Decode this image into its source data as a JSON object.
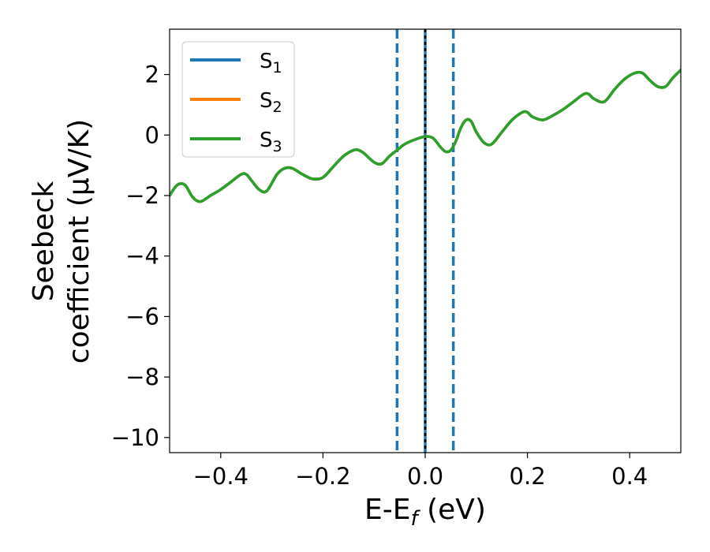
{
  "chart_data": {
    "type": "line",
    "xlabel": "E-E",
    "xlabel_sub": "f",
    "xlabel_unit": " (eV)",
    "ylabel_line1": "Seebeck",
    "ylabel_line2": "coefficient  (μV/K)",
    "xlim": [
      -0.5,
      0.5
    ],
    "ylim": [
      -10.5,
      3.5
    ],
    "x_ticks": [
      -0.4,
      -0.2,
      0.0,
      0.2,
      0.4
    ],
    "x_tick_labels": [
      "−0.4",
      "−0.2",
      "0.0",
      "0.2",
      "0.4"
    ],
    "y_ticks": [
      2,
      0,
      -2,
      -4,
      -6,
      -8,
      -10
    ],
    "y_tick_labels": [
      "2",
      "0",
      "−2",
      "−4",
      "−6",
      "−8",
      "−10"
    ],
    "grid": false,
    "legend_position": "top-left",
    "vlines": [
      {
        "x": -0.055,
        "style": "dashed",
        "color": "#1f77b4"
      },
      {
        "x": 0.055,
        "style": "dashed",
        "color": "#1f77b4"
      },
      {
        "x": 0.0,
        "style": "solid",
        "color": "#1f77b4"
      },
      {
        "x": 0.0,
        "style": "dotted",
        "color": "#000000"
      }
    ],
    "x": [
      -0.5,
      -0.485,
      -0.47,
      -0.455,
      -0.44,
      -0.42,
      -0.4,
      -0.38,
      -0.36,
      -0.35,
      -0.34,
      -0.325,
      -0.31,
      -0.29,
      -0.275,
      -0.26,
      -0.24,
      -0.22,
      -0.2,
      -0.18,
      -0.16,
      -0.14,
      -0.13,
      -0.12,
      -0.1,
      -0.085,
      -0.07,
      -0.055,
      -0.04,
      -0.02,
      0.0,
      0.015,
      0.03,
      0.04,
      0.05,
      0.06,
      0.07,
      0.08,
      0.09,
      0.1,
      0.115,
      0.13,
      0.15,
      0.17,
      0.19,
      0.2,
      0.21,
      0.23,
      0.25,
      0.27,
      0.29,
      0.31,
      0.32,
      0.33,
      0.35,
      0.37,
      0.39,
      0.41,
      0.425,
      0.44,
      0.455,
      0.47,
      0.485,
      0.5
    ],
    "series": [
      {
        "name": "S",
        "name_sub": "1",
        "color": "#1f77b4",
        "values": [
          -2.0,
          -1.65,
          -1.65,
          -2.05,
          -2.2,
          -2.0,
          -1.8,
          -1.55,
          -1.3,
          -1.3,
          -1.5,
          -1.8,
          -1.85,
          -1.3,
          -1.1,
          -1.1,
          -1.3,
          -1.45,
          -1.4,
          -1.05,
          -0.7,
          -0.5,
          -0.5,
          -0.6,
          -0.9,
          -0.95,
          -0.7,
          -0.5,
          -0.3,
          -0.15,
          -0.05,
          -0.1,
          -0.4,
          -0.55,
          -0.5,
          -0.2,
          0.25,
          0.5,
          0.45,
          0.1,
          -0.25,
          -0.3,
          0.1,
          0.5,
          0.75,
          0.75,
          0.6,
          0.5,
          0.65,
          0.85,
          1.1,
          1.35,
          1.35,
          1.2,
          1.1,
          1.5,
          1.85,
          2.05,
          2.05,
          1.8,
          1.6,
          1.6,
          1.9,
          2.15
        ]
      },
      {
        "name": "S",
        "name_sub": "2",
        "color": "#ff7f0e",
        "values": [
          -2.0,
          -1.65,
          -1.65,
          -2.05,
          -2.2,
          -2.0,
          -1.8,
          -1.55,
          -1.3,
          -1.3,
          -1.5,
          -1.8,
          -1.85,
          -1.3,
          -1.1,
          -1.1,
          -1.3,
          -1.45,
          -1.4,
          -1.05,
          -0.7,
          -0.5,
          -0.5,
          -0.6,
          -0.9,
          -0.95,
          -0.7,
          -0.5,
          -0.3,
          -0.15,
          -0.05,
          -0.1,
          -0.4,
          -0.55,
          -0.5,
          -0.2,
          0.25,
          0.5,
          0.45,
          0.1,
          -0.25,
          -0.3,
          0.1,
          0.5,
          0.75,
          0.75,
          0.6,
          0.5,
          0.65,
          0.85,
          1.1,
          1.35,
          1.35,
          1.2,
          1.1,
          1.5,
          1.85,
          2.05,
          2.05,
          1.8,
          1.6,
          1.6,
          1.9,
          2.15
        ]
      },
      {
        "name": "S",
        "name_sub": "3",
        "color": "#2ca02c",
        "values": [
          -2.0,
          -1.65,
          -1.65,
          -2.05,
          -2.2,
          -2.0,
          -1.8,
          -1.55,
          -1.3,
          -1.3,
          -1.5,
          -1.8,
          -1.85,
          -1.3,
          -1.1,
          -1.1,
          -1.3,
          -1.45,
          -1.4,
          -1.05,
          -0.7,
          -0.5,
          -0.5,
          -0.6,
          -0.9,
          -0.95,
          -0.7,
          -0.5,
          -0.3,
          -0.15,
          -0.05,
          -0.1,
          -0.4,
          -0.55,
          -0.5,
          -0.2,
          0.25,
          0.5,
          0.45,
          0.1,
          -0.25,
          -0.3,
          0.1,
          0.5,
          0.75,
          0.75,
          0.6,
          0.5,
          0.65,
          0.85,
          1.1,
          1.35,
          1.35,
          1.2,
          1.1,
          1.5,
          1.85,
          2.05,
          2.05,
          1.8,
          1.6,
          1.6,
          1.9,
          2.15
        ]
      }
    ]
  }
}
